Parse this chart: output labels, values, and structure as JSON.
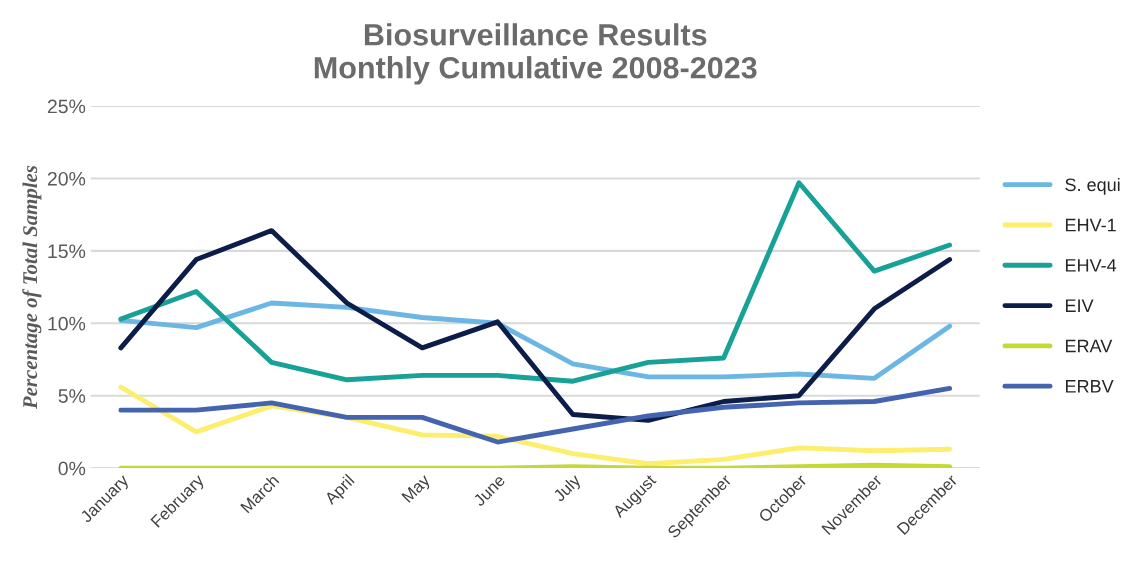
{
  "chart_data": {
    "type": "line",
    "title": "Biosurveillance Results\nMonthly Cumulative 2008-2023",
    "ylabel": "Percentage of Total Samples",
    "categories": [
      "January",
      "February",
      "March",
      "April",
      "May",
      "June",
      "July",
      "August",
      "September",
      "October",
      "November",
      "December"
    ],
    "series": [
      {
        "name": "S. equi",
        "color": "#6cb6e4",
        "values": [
          10.2,
          9.7,
          11.4,
          11.1,
          10.4,
          10.0,
          7.2,
          6.3,
          6.3,
          6.5,
          6.2,
          9.8
        ]
      },
      {
        "name": "EHV-1",
        "color": "#fdee6e",
        "values": [
          5.6,
          2.5,
          4.3,
          3.5,
          2.3,
          2.2,
          1.0,
          0.3,
          0.6,
          1.4,
          1.2,
          1.3
        ]
      },
      {
        "name": "EHV-4",
        "color": "#17a197",
        "values": [
          10.3,
          12.2,
          7.3,
          6.1,
          6.4,
          6.4,
          6.0,
          7.3,
          7.6,
          19.7,
          13.6,
          15.4
        ]
      },
      {
        "name": "EIV",
        "color": "#0b1d48",
        "values": [
          8.3,
          14.4,
          16.4,
          11.4,
          8.3,
          10.1,
          3.7,
          3.3,
          4.6,
          5.0,
          11.0,
          14.4
        ]
      },
      {
        "name": "ERAV",
        "color": "#c5d935",
        "values": [
          0,
          0,
          0,
          0,
          0,
          0,
          0.1,
          0,
          0,
          0.1,
          0.2,
          0.1
        ]
      },
      {
        "name": "ERBV",
        "color": "#4464b0",
        "values": [
          4.0,
          4.0,
          4.5,
          3.5,
          3.5,
          1.8,
          2.7,
          3.6,
          4.2,
          4.5,
          4.6,
          5.5
        ]
      }
    ],
    "ylim": [
      0,
      25
    ],
    "yticks": [
      {
        "value": 0,
        "label": "0%"
      },
      {
        "value": 5,
        "label": "5%"
      },
      {
        "value": 10,
        "label": "10%"
      },
      {
        "value": 15,
        "label": "15%"
      },
      {
        "value": 20,
        "label": "20%"
      },
      {
        "value": 25,
        "label": "25%"
      }
    ],
    "grid": "y",
    "legend": "right",
    "line_style": "solid",
    "marker": "none"
  }
}
